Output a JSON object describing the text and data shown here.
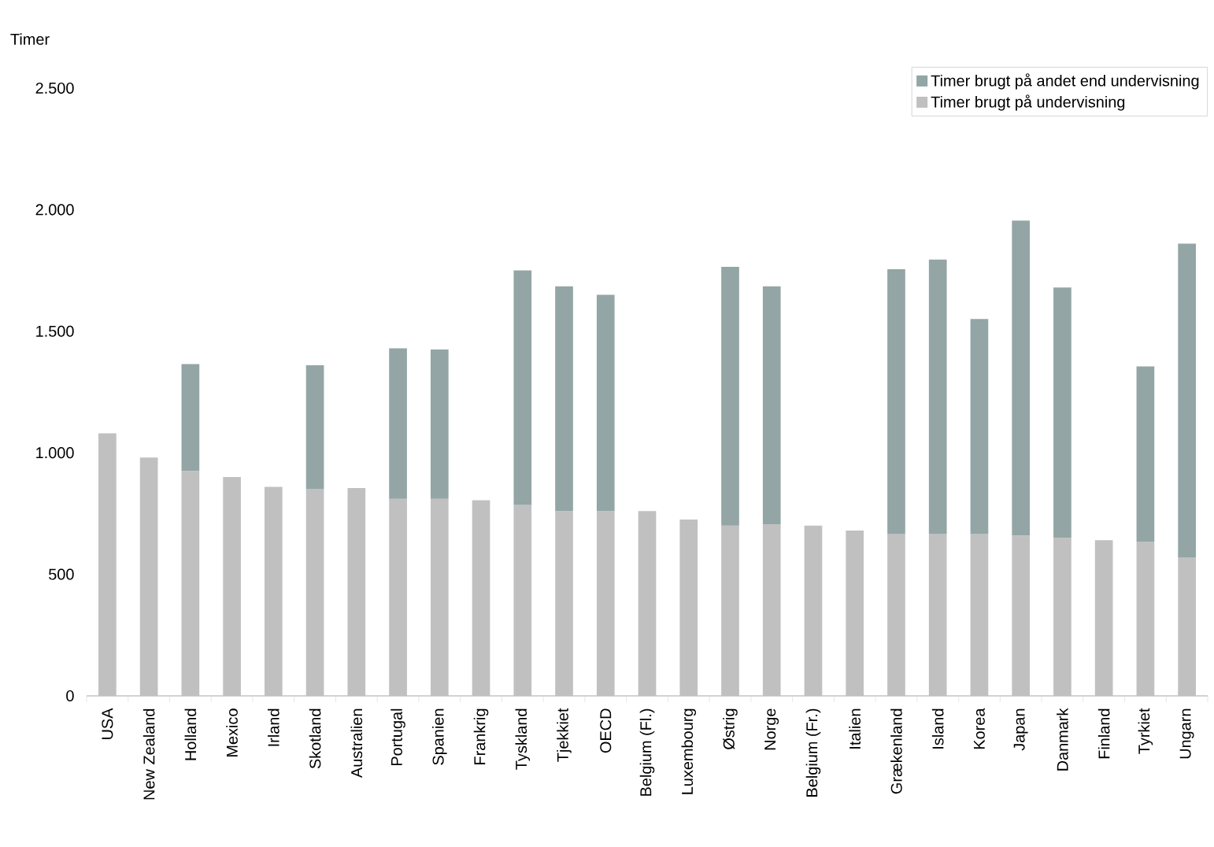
{
  "chart_data": {
    "type": "bar",
    "stacked": true,
    "ylabel": "Timer",
    "categories": [
      "USA",
      "New Zealand",
      "Holland",
      "Mexico",
      "Irland",
      "Skotland",
      "Australien",
      "Portugal",
      "Spanien",
      "Frankrig",
      "Tyskland",
      "Tjekkiet",
      "OECD",
      "Belgium (Fl.)",
      "Luxembourg",
      "Østrig",
      "Norge",
      "Belgium (Fr.)",
      "Italien",
      "Grækenland",
      "Island",
      "Korea",
      "Japan",
      "Danmark",
      "Finland",
      "Tyrkiet",
      "Ungarn"
    ],
    "series": [
      {
        "name": "Timer brugt på undervisning",
        "color": "#c0c0c0",
        "values": [
          1080,
          980,
          925,
          900,
          860,
          850,
          855,
          810,
          810,
          805,
          785,
          760,
          760,
          760,
          725,
          700,
          705,
          700,
          680,
          665,
          665,
          665,
          660,
          650,
          640,
          635,
          570
        ]
      },
      {
        "name": "Timer brugt på andet end undervisning",
        "color": "#93a5a5",
        "values": [
          null,
          null,
          440,
          null,
          null,
          510,
          null,
          620,
          615,
          null,
          965,
          925,
          890,
          null,
          null,
          1065,
          980,
          null,
          null,
          1090,
          1130,
          885,
          1295,
          1030,
          null,
          720,
          1290
        ]
      }
    ],
    "ylim": [
      0,
      2500
    ],
    "yticks": [
      {
        "value": 0,
        "label": "0"
      },
      {
        "value": 500,
        "label": "500"
      },
      {
        "value": 1000,
        "label": "1.000"
      },
      {
        "value": 1500,
        "label": "1.500"
      },
      {
        "value": 2000,
        "label": "2.000"
      },
      {
        "value": 2500,
        "label": "2.500"
      }
    ],
    "grid": false,
    "legend": "top right"
  }
}
